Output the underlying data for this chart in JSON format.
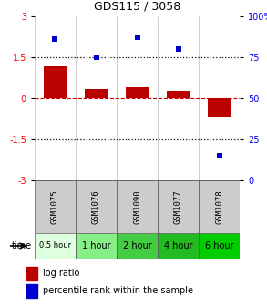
{
  "title": "GDS115 / 3058",
  "samples": [
    "GSM1075",
    "GSM1076",
    "GSM1090",
    "GSM1077",
    "GSM1078"
  ],
  "time_labels": [
    "0.5 hour",
    "1 hour",
    "2 hour",
    "4 hour",
    "6 hour"
  ],
  "time_colors": [
    "#ddffdd",
    "#88ee88",
    "#44cc44",
    "#22bb22",
    "#00cc00"
  ],
  "log_ratios": [
    1.2,
    0.35,
    0.45,
    0.28,
    -0.65
  ],
  "percentile_ranks": [
    86,
    75,
    87,
    80,
    15
  ],
  "bar_color": "#bb0000",
  "dot_color": "#0000cc",
  "ylim_left": [
    -3,
    3
  ],
  "ylim_right": [
    0,
    100
  ],
  "yticks_left": [
    -3,
    -1.5,
    0,
    1.5,
    3
  ],
  "yticks_right": [
    0,
    25,
    50,
    75,
    100
  ],
  "hlines": [
    1.5,
    -1.5
  ],
  "hline_zero_color": "#cc0000",
  "hline_dotted_color": "#111111",
  "bg_color": "#ffffff",
  "legend_log_ratio": "log ratio",
  "legend_percentile": "percentile rank within the sample",
  "time_label": "time"
}
